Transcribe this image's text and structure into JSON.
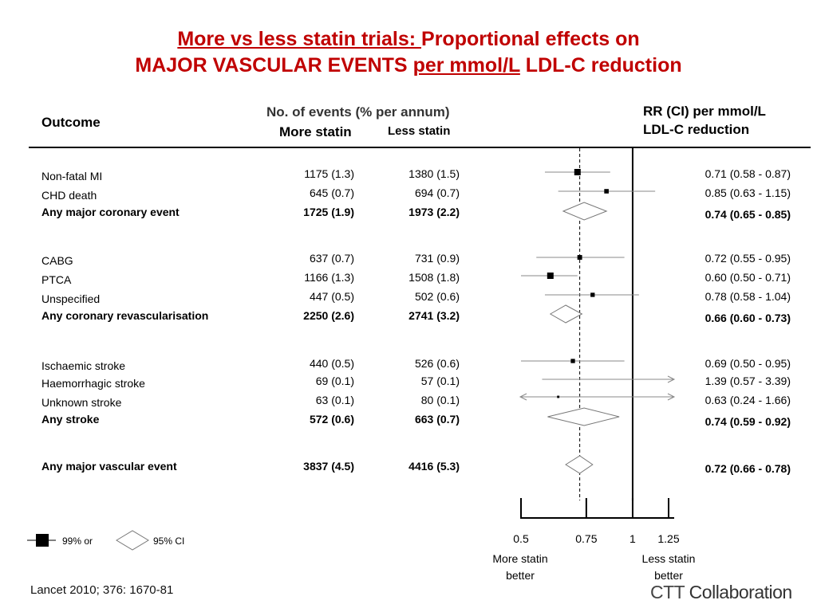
{
  "title": {
    "line1_underlined": "More vs less statin trials: ",
    "line1_rest": "Proportional effects on",
    "line2_before": "MAJOR VASCULAR EVENTS ",
    "line2_underlined": "per mmol/L",
    "line2_after": " LDL-C reduction"
  },
  "headers": {
    "outcome": "Outcome",
    "events": "No. of events (% per annum)",
    "more_statin": "More statin",
    "less_statin": "Less statin",
    "rr_line1": "RR (CI) per mmol/L",
    "rr_line2": "LDL-C reduction"
  },
  "legend": {
    "square_label": "99% or",
    "diamond_label": "95% CI"
  },
  "citation": "Lancet  2010; 376: 1670-81",
  "brand": {
    "part1": "CTT",
    "part2": " Collaboration"
  },
  "colors": {
    "title": "#c00000",
    "ink": "#000000",
    "ci_line": "#888888"
  },
  "chart_data": {
    "type": "forest",
    "x_scale": "log",
    "xlim": [
      0.5,
      1.25
    ],
    "ticks": [
      0.5,
      0.75,
      1,
      1.25
    ],
    "tick_labels": [
      "0.5",
      "0.75",
      "1",
      "1.25"
    ],
    "reference_line": 1,
    "overall_dashed_line": 0.72,
    "xlabel_left": "More statin\nbetter",
    "xlabel_right": "Less statin\nbetter",
    "rows": [
      {
        "label": "Non-fatal MI",
        "bold": false,
        "kind": "square",
        "more": "1175 (1.3)",
        "less": "1380 (1.5)",
        "rr_text": "0.71 (0.58 - 0.87)",
        "rr": 0.71,
        "lo": 0.58,
        "hi": 0.87,
        "weight": 1.0
      },
      {
        "label": "CHD death",
        "bold": false,
        "kind": "square",
        "more": "645 (0.7)",
        "less": "694 (0.7)",
        "rr_text": "0.85 (0.63 - 1.15)",
        "rr": 0.85,
        "lo": 0.63,
        "hi": 1.15,
        "weight": 0.6
      },
      {
        "label": "Any major coronary event",
        "bold": true,
        "kind": "diamond",
        "more": "1725 (1.9)",
        "less": "1973 (2.2)",
        "rr_text": "0.74 (0.65 - 0.85)",
        "rr": 0.74,
        "lo": 0.65,
        "hi": 0.85,
        "weight": 1.0
      },
      {
        "label": "CABG",
        "bold": false,
        "kind": "square",
        "more": "637 (0.7)",
        "less": "731 (0.9)",
        "rr_text": "0.72 (0.55 - 0.95)",
        "rr": 0.72,
        "lo": 0.55,
        "hi": 0.95,
        "weight": 0.65
      },
      {
        "label": "PTCA",
        "bold": false,
        "kind": "square",
        "more": "1166 (1.3)",
        "less": "1508 (1.8)",
        "rr_text": "0.60 (0.50 - 0.71)",
        "rr": 0.6,
        "lo": 0.5,
        "hi": 0.71,
        "weight": 1.0
      },
      {
        "label": "Unspecified",
        "bold": false,
        "kind": "square",
        "more": "447 (0.5)",
        "less": "502 (0.6)",
        "rr_text": "0.78 (0.58 - 1.04)",
        "rr": 0.78,
        "lo": 0.58,
        "hi": 1.04,
        "weight": 0.55
      },
      {
        "label": "Any coronary revascularisation",
        "bold": true,
        "kind": "diamond",
        "more": "2250 (2.6)",
        "less": "2741 (3.2)",
        "rr_text": "0.66 (0.60 - 0.73)",
        "rr": 0.66,
        "lo": 0.6,
        "hi": 0.73,
        "weight": 1.0
      },
      {
        "label": "Ischaemic stroke",
        "bold": false,
        "kind": "square",
        "more": "440 (0.5)",
        "less": "526 (0.6)",
        "rr_text": "0.69 (0.50 - 0.95)",
        "rr": 0.69,
        "lo": 0.5,
        "hi": 0.95,
        "weight": 0.55
      },
      {
        "label": "Haemorrhagic stroke",
        "bold": false,
        "kind": "square",
        "more": "69 (0.1)",
        "less": "57 (0.1)",
        "rr_text": "1.39 (0.57 - 3.39)",
        "rr": 1.39,
        "lo": 0.57,
        "hi": 3.39,
        "weight": 0.0
      },
      {
        "label": "Unknown stroke",
        "bold": false,
        "kind": "square",
        "more": "63 (0.1)",
        "less": "80 (0.1)",
        "rr_text": "0.63 (0.24 - 1.66)",
        "rr": 0.63,
        "lo": 0.24,
        "hi": 1.66,
        "weight": 0.15
      },
      {
        "label": "Any stroke",
        "bold": true,
        "kind": "diamond",
        "more": "572 (0.6)",
        "less": "663 (0.7)",
        "rr_text": "0.74 (0.59 - 0.92)",
        "rr": 0.74,
        "lo": 0.59,
        "hi": 0.92,
        "weight": 1.0
      },
      {
        "label": "Any major vascular event",
        "bold": true,
        "kind": "diamond",
        "more": "3837 (4.5)",
        "less": "4416 (5.3)",
        "rr_text": "0.72 (0.66 - 0.78)",
        "rr": 0.72,
        "lo": 0.66,
        "hi": 0.78,
        "weight": 1.0
      }
    ]
  }
}
